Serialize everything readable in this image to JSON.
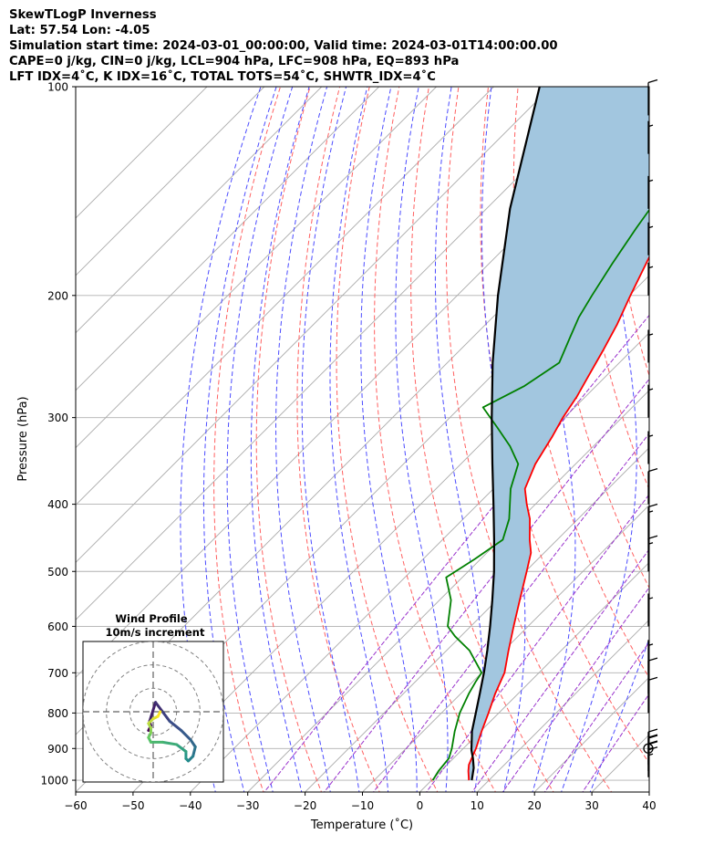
{
  "title_lines": [
    "SkewTLogP Inverness",
    "Lat: 57.54   Lon: -4.05",
    "Simulation start time: 2024-03-01_00:00:00, Valid time: 2024-03-01T14:00:00.00",
    "CAPE=0 j/kg, CIN=0 j/kg, LCL=904 hPa, LFC=908 hPa, EQ=893 hPa",
    "LFT IDX=4˚C, K IDX=16˚C, TOTAL TOTS=54˚C, SHWTR_IDX=4˚C"
  ],
  "chart_data": {
    "type": "skewt",
    "xlabel": "Temperature (˚C)",
    "ylabel": "Pressure (hPa)",
    "xlim": [
      -60,
      40
    ],
    "ylim": [
      1040,
      100
    ],
    "y_scale": "log",
    "x_ticks": [
      -60,
      -50,
      -40,
      -30,
      -20,
      -10,
      0,
      10,
      20,
      30,
      40
    ],
    "x_tick_labels": [
      "−60",
      "−50",
      "−40",
      "−30",
      "−20",
      "−10",
      "0",
      "10",
      "20",
      "30",
      "40"
    ],
    "p_ticks": [
      100,
      200,
      300,
      400,
      500,
      600,
      700,
      800,
      900,
      1000
    ],
    "grid": true,
    "skew_isotherm_spacing": 10,
    "dry_adiabat_thetas": [
      -30,
      -20,
      -10,
      0,
      10,
      20,
      30,
      40,
      50,
      60,
      70,
      80,
      90,
      100,
      110,
      120,
      130,
      140,
      150,
      160
    ],
    "moist_adiabat_starts": [
      -35,
      -30,
      -25,
      -20,
      -15,
      -10,
      -5,
      0,
      5,
      10,
      15,
      20,
      25,
      30
    ],
    "mixing_ratios": [
      0.4,
      1,
      2,
      4,
      7,
      10,
      16,
      24
    ],
    "colors": {
      "temperature": "#ff0000",
      "dewpoint": "#008000",
      "parcel": "#000000",
      "shade": "#a2c6df",
      "isotherm": "#aaaaaa",
      "dry_adiabat": "#ff6060",
      "moist_adiabat": "#4b4bff",
      "mixing_ratio": "#9932cc"
    },
    "temperature": [
      {
        "p": 1000,
        "t": 6.5
      },
      {
        "p": 970,
        "t": 4.8
      },
      {
        "p": 950,
        "t": 3.8
      },
      {
        "p": 925,
        "t": 3.0
      },
      {
        "p": 900,
        "t": 2.2
      },
      {
        "p": 875,
        "t": 1.2
      },
      {
        "p": 850,
        "t": 0.2
      },
      {
        "p": 800,
        "t": -1.8
      },
      {
        "p": 750,
        "t": -4.0
      },
      {
        "p": 700,
        "t": -6.0
      },
      {
        "p": 650,
        "t": -9.2
      },
      {
        "p": 600,
        "t": -12.5
      },
      {
        "p": 550,
        "t": -16.0
      },
      {
        "p": 500,
        "t": -19.8
      },
      {
        "p": 470,
        "t": -22.3
      },
      {
        "p": 450,
        "t": -24.8
      },
      {
        "p": 420,
        "t": -28.4
      },
      {
        "p": 400,
        "t": -31.5
      },
      {
        "p": 380,
        "t": -34.5
      },
      {
        "p": 350,
        "t": -37.0
      },
      {
        "p": 320,
        "t": -38.8
      },
      {
        "p": 300,
        "t": -40.3
      },
      {
        "p": 280,
        "t": -41.5
      },
      {
        "p": 260,
        "t": -43.2
      },
      {
        "p": 240,
        "t": -45.0
      },
      {
        "p": 220,
        "t": -47.1
      },
      {
        "p": 200,
        "t": -49.8
      },
      {
        "p": 180,
        "t": -52.6
      },
      {
        "p": 160,
        "t": -55.8
      },
      {
        "p": 140,
        "t": -59.8
      },
      {
        "p": 120,
        "t": -64.4
      },
      {
        "p": 110,
        "t": -67.3
      },
      {
        "p": 100,
        "t": -70.6
      }
    ],
    "dewpoint": [
      {
        "p": 1000,
        "t": 0.2
      },
      {
        "p": 970,
        "t": -0.4
      },
      {
        "p": 930,
        "t": -0.8
      },
      {
        "p": 900,
        "t": -2.0
      },
      {
        "p": 850,
        "t": -4.5
      },
      {
        "p": 800,
        "t": -6.8
      },
      {
        "p": 750,
        "t": -8.6
      },
      {
        "p": 720,
        "t": -9.5
      },
      {
        "p": 700,
        "t": -10.0
      },
      {
        "p": 650,
        "t": -16.0
      },
      {
        "p": 620,
        "t": -21.0
      },
      {
        "p": 600,
        "t": -24.0
      },
      {
        "p": 550,
        "t": -28.0
      },
      {
        "p": 510,
        "t": -32.8
      },
      {
        "p": 480,
        "t": -31.0
      },
      {
        "p": 450,
        "t": -29.5
      },
      {
        "p": 420,
        "t": -32.0
      },
      {
        "p": 380,
        "t": -37.0
      },
      {
        "p": 350,
        "t": -40.0
      },
      {
        "p": 330,
        "t": -44.5
      },
      {
        "p": 310,
        "t": -50.0
      },
      {
        "p": 290,
        "t": -56.0
      },
      {
        "p": 270,
        "t": -52.5
      },
      {
        "p": 250,
        "t": -50.5
      },
      {
        "p": 230,
        "t": -53.0
      },
      {
        "p": 215,
        "t": -55.0
      },
      {
        "p": 200,
        "t": -56.5
      },
      {
        "p": 180,
        "t": -58.5
      },
      {
        "p": 160,
        "t": -60.5
      },
      {
        "p": 140,
        "t": -62.5
      },
      {
        "p": 120,
        "t": -64.5
      },
      {
        "p": 100,
        "t": -66.5
      }
    ],
    "parcel": [
      {
        "p": 1000,
        "t": 7.0
      },
      {
        "p": 960,
        "t": 5.2
      },
      {
        "p": 930,
        "t": 3.4
      },
      {
        "p": 905,
        "t": 1.7
      },
      {
        "p": 870,
        "t": -0.3
      },
      {
        "p": 850,
        "t": -1.5
      },
      {
        "p": 800,
        "t": -4.0
      },
      {
        "p": 750,
        "t": -6.7
      },
      {
        "p": 700,
        "t": -9.6
      },
      {
        "p": 650,
        "t": -12.9
      },
      {
        "p": 600,
        "t": -16.6
      },
      {
        "p": 550,
        "t": -20.8
      },
      {
        "p": 500,
        "t": -25.5
      },
      {
        "p": 450,
        "t": -31.0
      },
      {
        "p": 400,
        "t": -37.3
      },
      {
        "p": 350,
        "t": -44.5
      },
      {
        "p": 300,
        "t": -52.7
      },
      {
        "p": 250,
        "t": -62.1
      },
      {
        "p": 200,
        "t": -72.9
      },
      {
        "p": 150,
        "t": -85.9
      },
      {
        "p": 100,
        "t": -102.0
      }
    ],
    "wind_barbs": [
      {
        "p": 990,
        "speed_kt": 25
      },
      {
        "p": 970,
        "speed_kt": 25
      },
      {
        "p": 950,
        "speed_kt": 20
      },
      {
        "p": 900,
        "speed_kt": 0
      },
      {
        "p": 800,
        "speed_kt": 10
      },
      {
        "p": 750,
        "speed_kt": 10
      },
      {
        "p": 700,
        "speed_kt": 5
      },
      {
        "p": 600,
        "speed_kt": 5
      },
      {
        "p": 500,
        "speed_kt": 15
      },
      {
        "p": 450,
        "speed_kt": 15
      },
      {
        "p": 400,
        "speed_kt": 10
      },
      {
        "p": 350,
        "speed_kt": 5
      },
      {
        "p": 300,
        "speed_kt": 5
      },
      {
        "p": 250,
        "speed_kt": 5
      },
      {
        "p": 200,
        "speed_kt": 5
      },
      {
        "p": 175,
        "speed_kt": 5
      },
      {
        "p": 150,
        "speed_kt": 5
      },
      {
        "p": 125,
        "speed_kt": 5
      },
      {
        "p": 110,
        "speed_kt": 10
      }
    ],
    "hodograph": {
      "title": "Wind Profile",
      "subtitle": "10m/s increment",
      "rings_ms": [
        10,
        20,
        30
      ],
      "range_ms": 30,
      "points": [
        {
          "u": -2,
          "v": 8
        },
        {
          "u": -1,
          "v": 6
        },
        {
          "u": -1.5,
          "v": 4
        },
        {
          "u": 1,
          "v": -4
        },
        {
          "u": 4,
          "v": 0
        },
        {
          "u": 7,
          "v": 4
        },
        {
          "u": 12,
          "v": 8
        },
        {
          "u": 16,
          "v": 12
        },
        {
          "u": 18,
          "v": 15
        },
        {
          "u": 17,
          "v": 19
        },
        {
          "u": 15,
          "v": 21
        },
        {
          "u": 14,
          "v": 20
        },
        {
          "u": 14,
          "v": 17
        },
        {
          "u": 10,
          "v": 14
        },
        {
          "u": 4,
          "v": 13
        },
        {
          "u": -1,
          "v": 13
        },
        {
          "u": -2,
          "v": 11
        },
        {
          "u": -1,
          "v": 9
        },
        {
          "u": -1,
          "v": 7
        },
        {
          "u": -2,
          "v": 5
        },
        {
          "u": 0,
          "v": 3
        },
        {
          "u": 2,
          "v": 2
        },
        {
          "u": 3,
          "v": 0
        }
      ]
    }
  }
}
